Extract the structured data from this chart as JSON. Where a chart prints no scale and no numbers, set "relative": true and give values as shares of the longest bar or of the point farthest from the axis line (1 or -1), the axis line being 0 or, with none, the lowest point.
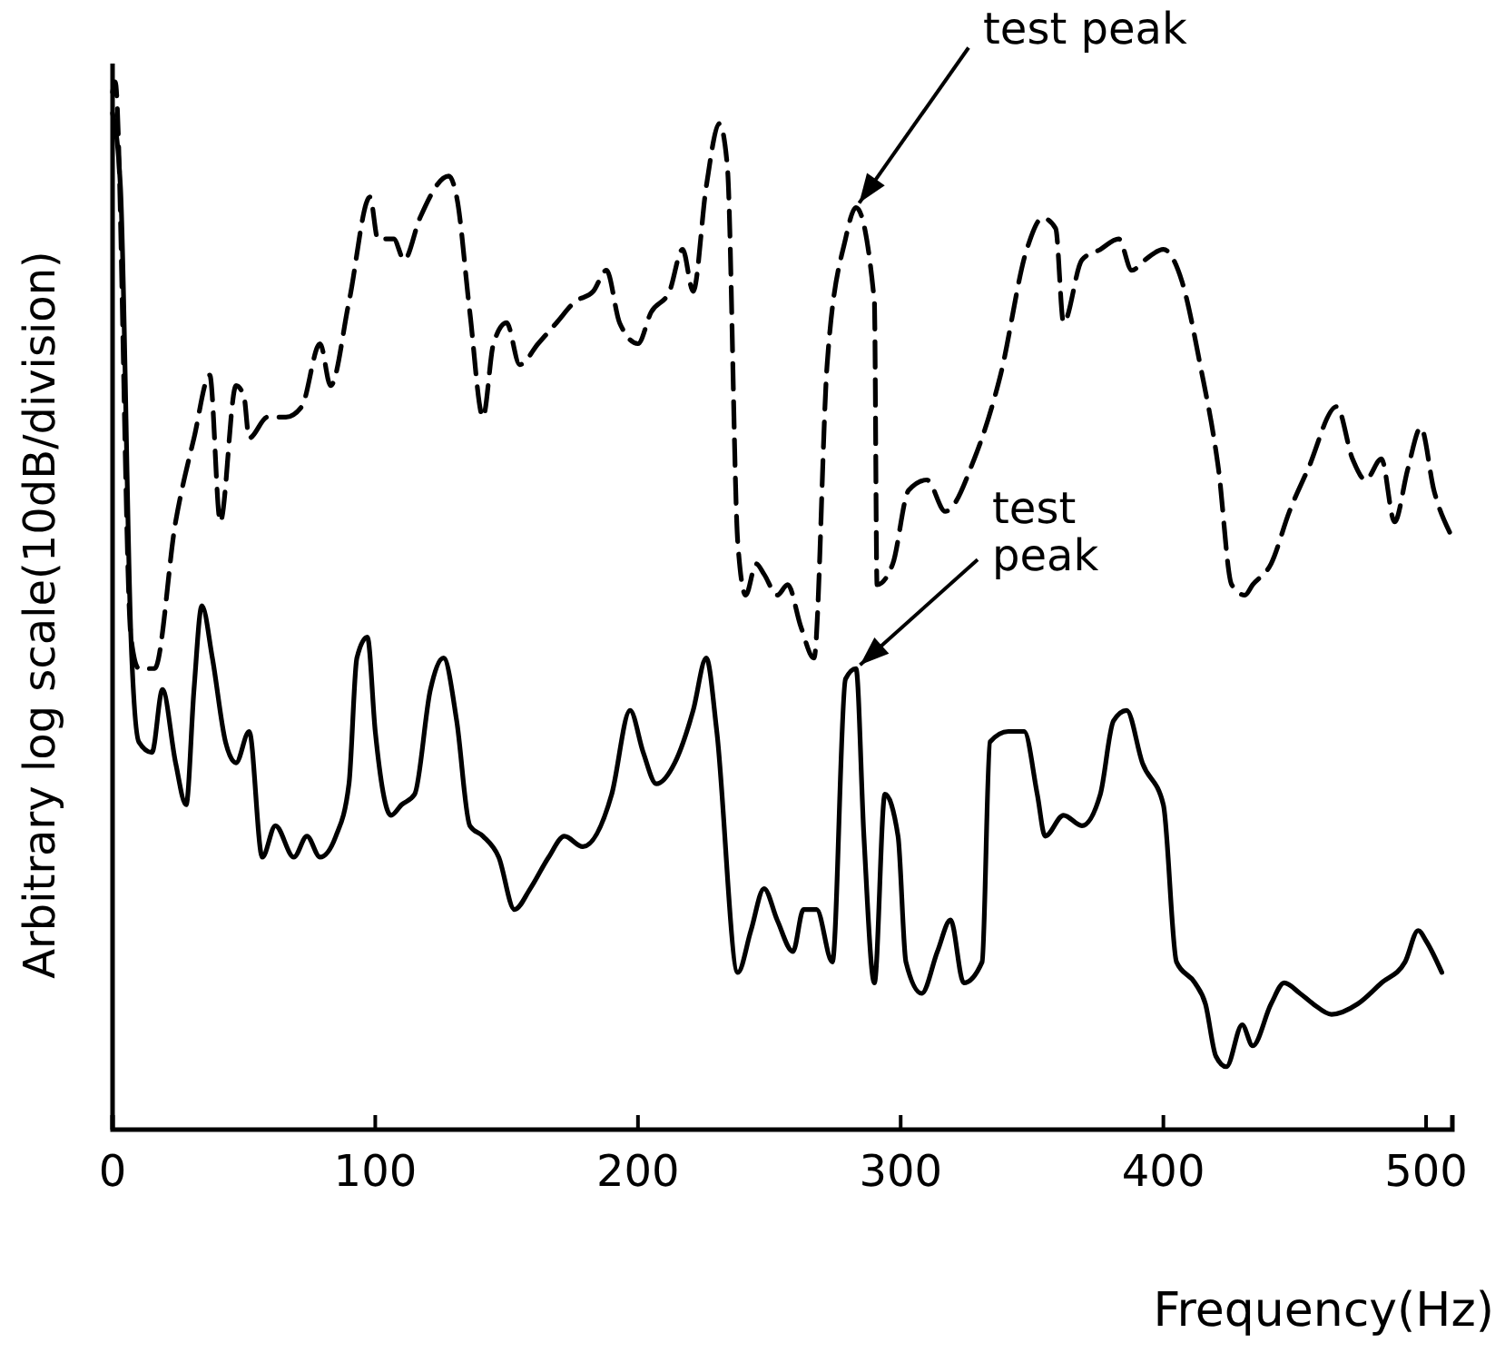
{
  "chart_data": {
    "type": "line",
    "relative": true,
    "xlabel": "Frequency(Hz)",
    "ylabel": "Arbitrary log scale(10dB/division)",
    "xlim": [
      0,
      510
    ],
    "xticks": [
      0,
      100,
      200,
      300,
      400,
      500
    ],
    "marker": "none",
    "series": [
      {
        "color": "#000000",
        "line_style": "dashed",
        "x": [
          0,
          1,
          7,
          10,
          16,
          24,
          31,
          37,
          41,
          47,
          50,
          52,
          59,
          66,
          72,
          79,
          83,
          90,
          98,
          101,
          107,
          111,
          117,
          128,
          131,
          136,
          141,
          145,
          150,
          155,
          162,
          169,
          176,
          183,
          188,
          193,
          200,
          205,
          212,
          217,
          221,
          226,
          231,
          234,
          238,
          241,
          245,
          248,
          253,
          257,
          262,
          267,
          272,
          279,
          283,
          290,
          291,
          297,
          303,
          310,
          317,
          328,
          338,
          348,
          354,
          359,
          362,
          369,
          376,
          383,
          388,
          393,
          400,
          407,
          414,
          421,
          426,
          431,
          434,
          441,
          448,
          455,
          466,
          472,
          477,
          483,
          488,
          493,
          498,
          503,
          509
        ],
        "values": [
          0.99,
          1.0,
          0.47,
          0.44,
          0.44,
          0.58,
          0.66,
          0.72,
          0.58,
          0.71,
          0.7,
          0.66,
          0.68,
          0.68,
          0.69,
          0.75,
          0.71,
          0.79,
          0.89,
          0.85,
          0.85,
          0.83,
          0.87,
          0.91,
          0.89,
          0.78,
          0.68,
          0.75,
          0.77,
          0.73,
          0.75,
          0.77,
          0.79,
          0.8,
          0.82,
          0.77,
          0.75,
          0.78,
          0.8,
          0.84,
          0.8,
          0.9,
          0.96,
          0.92,
          0.56,
          0.51,
          0.54,
          0.53,
          0.51,
          0.52,
          0.48,
          0.45,
          0.73,
          0.85,
          0.88,
          0.79,
          0.52,
          0.54,
          0.61,
          0.62,
          0.59,
          0.64,
          0.72,
          0.84,
          0.87,
          0.86,
          0.77,
          0.83,
          0.84,
          0.85,
          0.82,
          0.83,
          0.84,
          0.81,
          0.73,
          0.63,
          0.52,
          0.51,
          0.52,
          0.54,
          0.59,
          0.63,
          0.69,
          0.64,
          0.62,
          0.64,
          0.58,
          0.63,
          0.67,
          0.61,
          0.57
        ]
      },
      {
        "color": "#000000",
        "line_style": "solid",
        "x": [
          0,
          3,
          7,
          10,
          15,
          19,
          24,
          28,
          31,
          34,
          38,
          43,
          47,
          52,
          57,
          62,
          69,
          74,
          79,
          85,
          90,
          93,
          97,
          100,
          106,
          110,
          115,
          121,
          126,
          131,
          136,
          141,
          147,
          153,
          159,
          166,
          172,
          179,
          190,
          197,
          202,
          207,
          214,
          221,
          226,
          230,
          238,
          243,
          248,
          253,
          259,
          263,
          268,
          274,
          279,
          283,
          286,
          290,
          294,
          299,
          302,
          308,
          314,
          319,
          324,
          331,
          334,
          341,
          347,
          352,
          355,
          362,
          369,
          376,
          381,
          386,
          392,
          400,
          405,
          412,
          416,
          420,
          424,
          430,
          434,
          441,
          446,
          452,
          457,
          464,
          474,
          483,
          492,
          497,
          500,
          506
        ],
        "values": [
          0.97,
          0.9,
          0.47,
          0.37,
          0.36,
          0.42,
          0.35,
          0.31,
          0.42,
          0.5,
          0.45,
          0.37,
          0.35,
          0.38,
          0.26,
          0.29,
          0.26,
          0.28,
          0.26,
          0.28,
          0.33,
          0.45,
          0.47,
          0.38,
          0.3,
          0.31,
          0.32,
          0.42,
          0.45,
          0.39,
          0.29,
          0.28,
          0.26,
          0.21,
          0.23,
          0.26,
          0.28,
          0.27,
          0.32,
          0.4,
          0.36,
          0.33,
          0.35,
          0.4,
          0.45,
          0.38,
          0.15,
          0.19,
          0.23,
          0.2,
          0.17,
          0.21,
          0.21,
          0.16,
          0.43,
          0.44,
          0.28,
          0.14,
          0.32,
          0.28,
          0.16,
          0.13,
          0.17,
          0.2,
          0.14,
          0.16,
          0.37,
          0.38,
          0.38,
          0.32,
          0.28,
          0.3,
          0.29,
          0.32,
          0.39,
          0.4,
          0.35,
          0.31,
          0.16,
          0.14,
          0.12,
          0.07,
          0.06,
          0.1,
          0.08,
          0.12,
          0.14,
          0.13,
          0.12,
          0.11,
          0.12,
          0.14,
          0.16,
          0.19,
          0.18,
          0.15
        ]
      }
    ],
    "annotations": [
      {
        "text": "test peak",
        "x": 283,
        "y": 0.88
      },
      {
        "text": "test peak",
        "x": 283,
        "y": 0.44
      }
    ]
  }
}
